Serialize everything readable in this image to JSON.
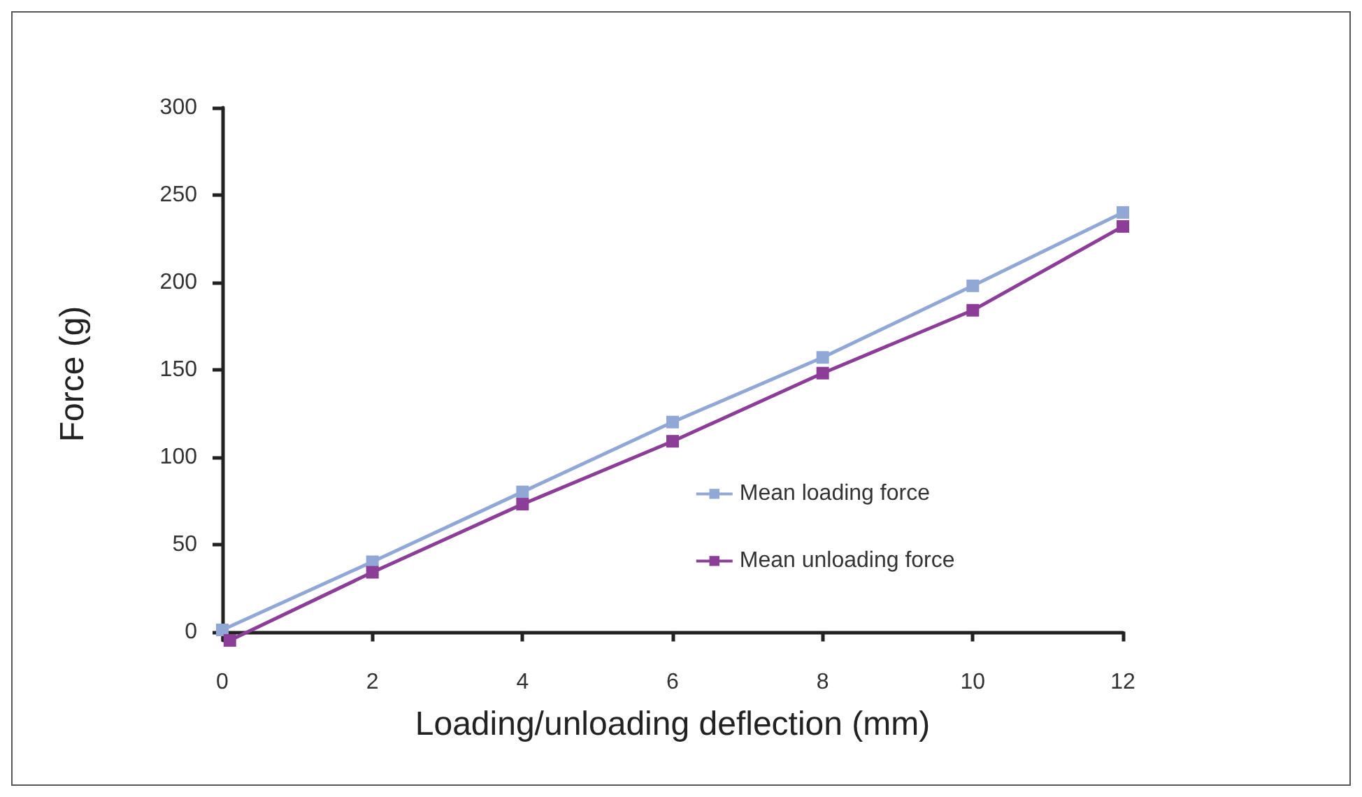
{
  "chart_data": {
    "type": "line",
    "xlabel": "Loading/unloading deflection (mm)",
    "ylabel": "Force (g)",
    "xlim": [
      0,
      12
    ],
    "xticks": [
      0,
      2,
      4,
      6,
      8,
      10,
      12
    ],
    "ylim": [
      -5,
      300
    ],
    "yticks": [
      0,
      50,
      100,
      150,
      200,
      250,
      300
    ],
    "series": [
      {
        "name": "Mean loading force",
        "color": "#91a8d6",
        "x": [
          0,
          2,
          4,
          6,
          8,
          10,
          12
        ],
        "values": [
          1,
          40,
          80,
          120,
          157,
          198,
          240
        ]
      },
      {
        "name": "Mean unloading force",
        "color": "#8b3d98",
        "x": [
          0.1,
          2,
          4,
          6,
          8,
          10,
          12
        ],
        "values": [
          -5,
          34,
          73,
          109,
          148,
          184,
          232
        ]
      }
    ],
    "marker": "square",
    "line_style": "solid",
    "grid": false,
    "legend": "right"
  }
}
